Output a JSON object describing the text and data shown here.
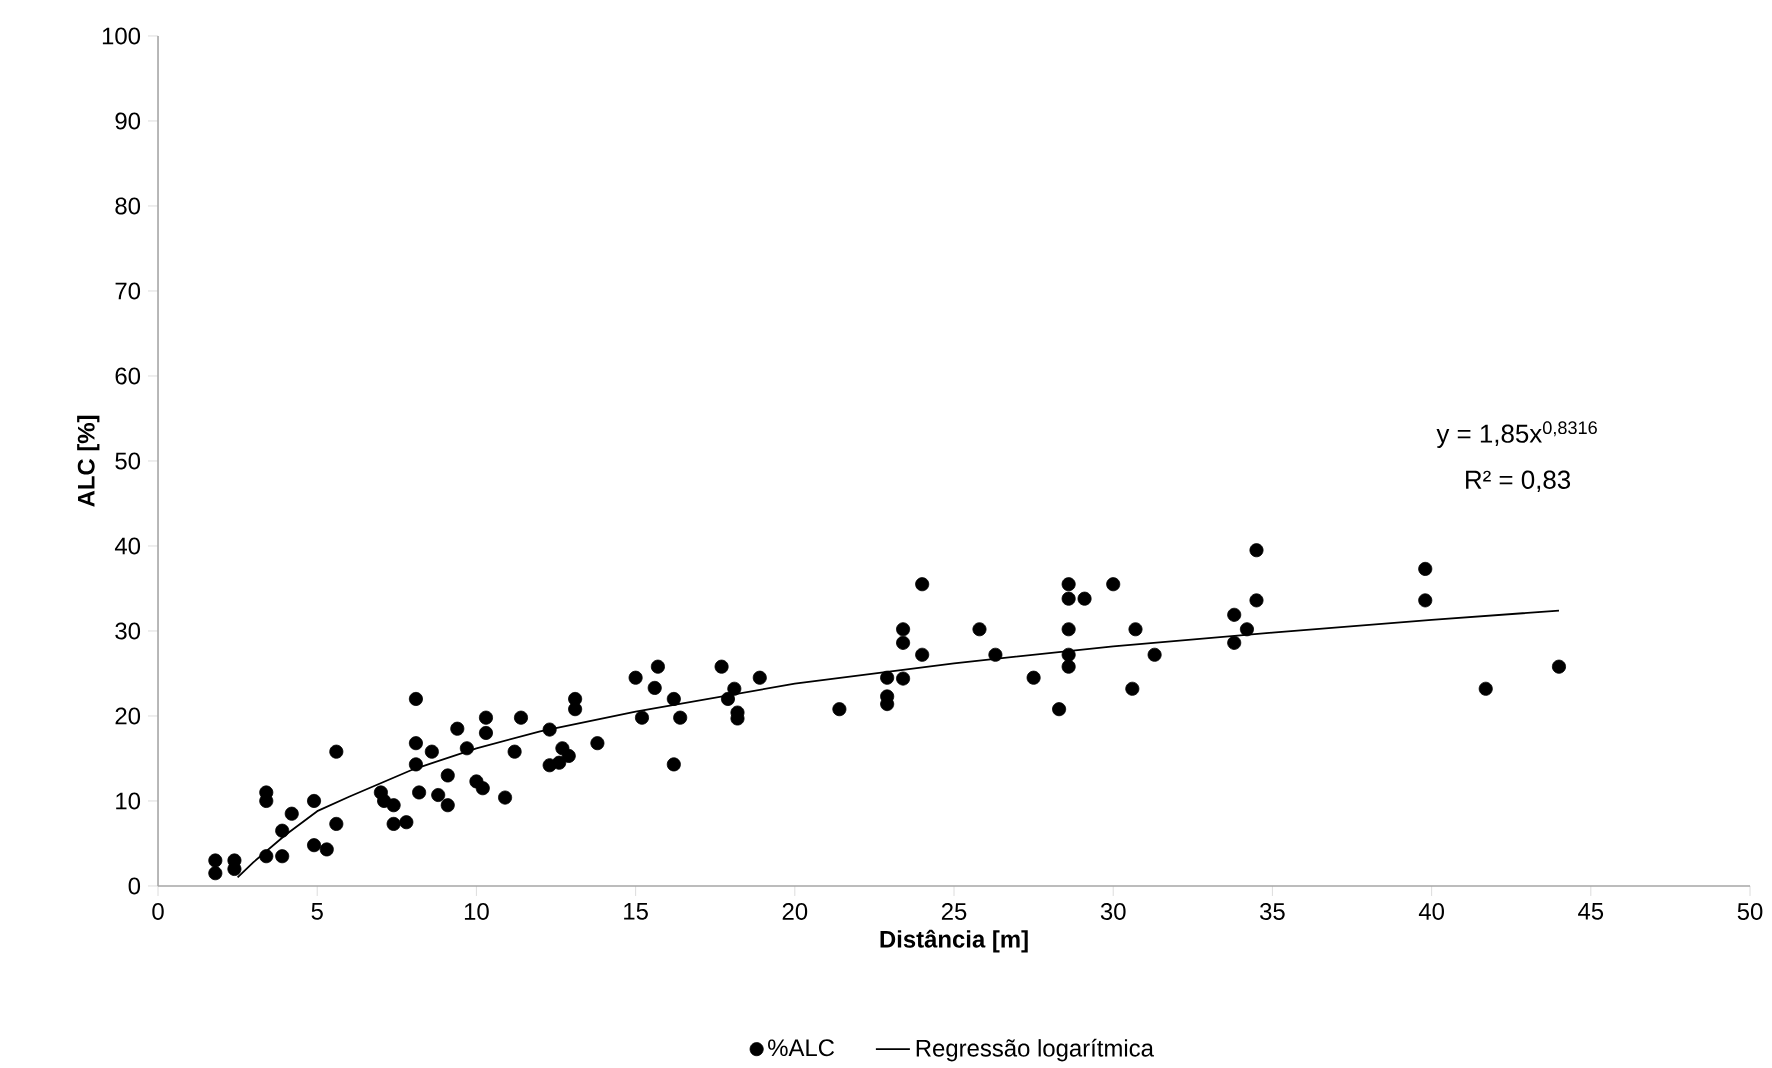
{
  "chart_data": {
    "type": "scatter",
    "xlabel": "Distância [m]",
    "ylabel": "ALC [%]",
    "xlim": [
      0,
      50
    ],
    "ylim": [
      0,
      100
    ],
    "xticks": [
      0,
      5,
      10,
      15,
      20,
      25,
      30,
      35,
      40,
      45,
      50
    ],
    "yticks": [
      0,
      10,
      20,
      30,
      40,
      50,
      60,
      70,
      80,
      90,
      100
    ],
    "grid": false,
    "legend": "bottom",
    "marker": "circle",
    "annotations": [
      "y = 1,85x$^{0,8316}$",
      "R² = 0,83"
    ],
    "series": [
      {
        "name": "%ALC",
        "color": "#000000",
        "x": [
          1.8,
          1.8,
          2.4,
          2.4,
          3.4,
          3.4,
          3.4,
          3.9,
          3.9,
          4.2,
          4.9,
          4.9,
          5.3,
          5.6,
          5.6,
          7,
          7.1,
          7.4,
          7.4,
          7.8,
          8.1,
          8.1,
          8.1,
          8.2,
          8.6,
          8.8,
          9.1,
          9.1,
          9.4,
          9.7,
          10,
          10.2,
          10.3,
          10.3,
          10.9,
          11.2,
          11.4,
          12.3,
          12.3,
          12.6,
          12.7,
          12.9,
          13.1,
          13.1,
          13.8,
          15,
          15.2,
          15.6,
          15.7,
          16.2,
          16.2,
          16.4,
          17.7,
          17.9,
          18.1,
          18.2,
          18.2,
          18.9,
          21.4,
          22.9,
          22.9,
          22.9,
          23.4,
          23.4,
          23.4,
          24,
          24,
          25.8,
          26.3,
          27.5,
          28.3,
          28.6,
          28.6,
          28.6,
          28.6,
          28.6,
          29.1,
          30,
          30.6,
          30.7,
          31.3,
          33.8,
          33.8,
          34.2,
          34.5,
          34.5,
          39.8,
          39.8,
          41.7,
          44
        ],
        "values": [
          1.5,
          3,
          2,
          3,
          3.5,
          10,
          11,
          3.5,
          6.5,
          8.5,
          4.8,
          10,
          4.3,
          7.3,
          15.8,
          11,
          10,
          7.3,
          9.5,
          7.5,
          22,
          14.3,
          16.8,
          11,
          15.8,
          10.7,
          9.5,
          13,
          18.5,
          16.2,
          12.3,
          11.5,
          18,
          19.8,
          10.4,
          15.8,
          19.8,
          18.4,
          14.2,
          14.5,
          16.2,
          15.3,
          20.8,
          22,
          16.8,
          24.5,
          19.8,
          23.3,
          25.8,
          14.3,
          22,
          19.8,
          25.8,
          22,
          23.2,
          20.4,
          19.7,
          24.5,
          20.8,
          24.5,
          21.4,
          22.3,
          30.2,
          28.6,
          24.4,
          35.5,
          27.2,
          30.2,
          27.2,
          24.5,
          20.8,
          35.5,
          33.8,
          30.2,
          27.2,
          25.8,
          33.8,
          35.5,
          23.2,
          30.2,
          27.2,
          28.6,
          31.9,
          30.2,
          33.6,
          39.5,
          37.3,
          33.6,
          23.2,
          25.8
        ]
      },
      {
        "name": "Regressão logarítmica",
        "type": "line",
        "color": "#000000",
        "marker": "none",
        "line_style": "solid",
        "x": [
          2.5,
          3,
          4,
          5,
          6,
          8,
          10,
          12,
          15,
          20,
          25,
          30,
          35,
          40,
          44
        ],
        "values": [
          1,
          2.8,
          6,
          8.8,
          10.5,
          13.7,
          16.2,
          18.2,
          20.5,
          23.8,
          26.2,
          28.2,
          29.8,
          31.3,
          32.4
        ]
      }
    ]
  }
}
